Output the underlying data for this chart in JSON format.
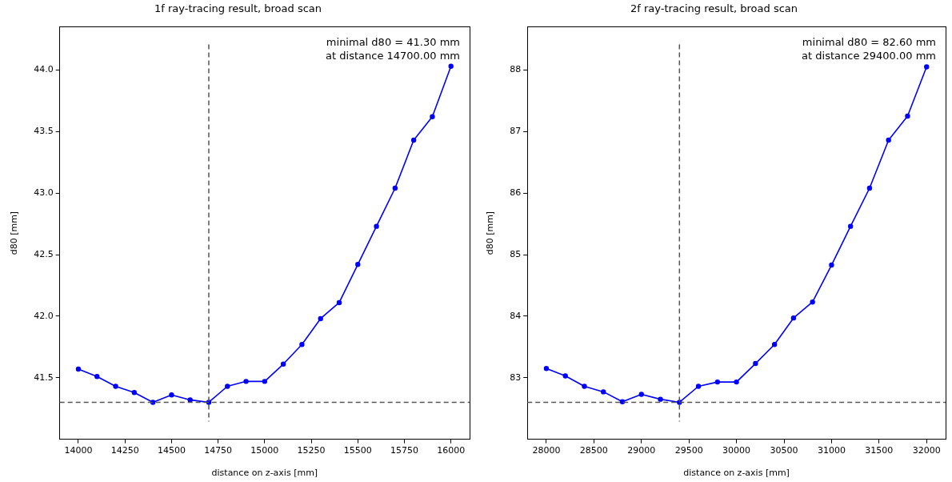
{
  "chart_data": [
    {
      "type": "line",
      "title": "1f ray-tracing result, broad scan",
      "xlabel": "distance on z-axis [mm]",
      "ylabel": "d80 [mm]",
      "x": [
        14000,
        14100,
        14200,
        14300,
        14400,
        14500,
        14600,
        14700,
        14800,
        14900,
        15000,
        15100,
        15200,
        15300,
        15400,
        15500,
        15600,
        15700,
        15800,
        15900,
        16000
      ],
      "series": [
        {
          "color": "#0000ff",
          "values": [
            41.57,
            41.51,
            41.43,
            41.38,
            41.3,
            41.36,
            41.32,
            41.3,
            41.43,
            41.47,
            41.47,
            41.61,
            41.77,
            41.98,
            42.11,
            42.42,
            42.73,
            43.04,
            43.43,
            43.62,
            44.03
          ]
        }
      ],
      "xlim": [
        13900,
        16100
      ],
      "xticks": [
        14000,
        14250,
        14500,
        14750,
        15000,
        15250,
        15500,
        15750,
        16000
      ],
      "ylim": [
        41.0,
        44.35
      ],
      "yticks": [
        {
          "value": 41.5,
          "label": "41.5"
        },
        {
          "value": 42,
          "label": "42.0"
        },
        {
          "value": 42.5,
          "label": "42.5"
        },
        {
          "value": 43,
          "label": "43.0"
        },
        {
          "value": 43.5,
          "label": "43.5"
        },
        {
          "value": 44,
          "label": "44.0"
        }
      ],
      "ref_lines": [
        {
          "axis": "x",
          "value": 14700,
          "color": "#555555",
          "line_style": "dashed"
        },
        {
          "axis": "y",
          "value": 41.3,
          "color": "#555555",
          "line_style": "dashed"
        }
      ],
      "annotations": [
        "minimal d80 = 41.30 mm",
        "at distance 14700.00 mm"
      ],
      "grid": false,
      "legend": false,
      "marker": "circle",
      "line_style": "solid"
    },
    {
      "type": "line",
      "title": "2f ray-tracing result, broad scan",
      "xlabel": "distance on z-axis [mm]",
      "ylabel": "d80 [mm]",
      "x": [
        28000,
        28200,
        28400,
        28600,
        28800,
        29000,
        29200,
        29400,
        29600,
        29800,
        30000,
        30200,
        30400,
        30600,
        30800,
        31000,
        31200,
        31400,
        31600,
        31800,
        32000
      ],
      "series": [
        {
          "color": "#0000ff",
          "values": [
            83.15,
            83.03,
            82.86,
            82.77,
            82.61,
            82.73,
            82.65,
            82.6,
            82.86,
            82.93,
            82.93,
            83.23,
            83.54,
            83.97,
            84.23,
            84.83,
            85.46,
            86.08,
            86.86,
            87.25,
            88.05
          ]
        }
      ],
      "xlim": [
        27800,
        32200
      ],
      "xticks": [
        28000,
        28500,
        29000,
        29500,
        30000,
        30500,
        31000,
        31500,
        32000
      ],
      "ylim": [
        82.0,
        88.7
      ],
      "yticks": [
        83,
        84,
        85,
        86,
        87,
        88
      ],
      "ref_lines": [
        {
          "axis": "x",
          "value": 29400,
          "color": "#555555",
          "line_style": "dashed"
        },
        {
          "axis": "y",
          "value": 82.6,
          "color": "#555555",
          "line_style": "dashed"
        }
      ],
      "annotations": [
        "minimal d80 = 82.60 mm",
        "at distance 29400.00 mm"
      ],
      "grid": false,
      "legend": false,
      "marker": "circle",
      "line_style": "solid"
    }
  ]
}
